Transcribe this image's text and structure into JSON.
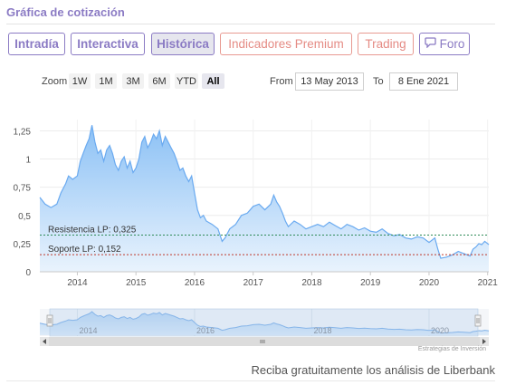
{
  "header": {
    "title": "Gráfica de cotización"
  },
  "tabs": [
    {
      "label": "Intradía"
    },
    {
      "label": "Interactiva"
    },
    {
      "label": "Histórica"
    },
    {
      "label": "Indicadores Premium"
    },
    {
      "label": "Trading"
    },
    {
      "label": "Foro",
      "icon": "chat-bubble-icon"
    }
  ],
  "zoom": {
    "label": "Zoom",
    "buttons": [
      "1W",
      "1M",
      "3M",
      "6M",
      "YTD",
      "All"
    ],
    "selected": "All"
  },
  "range": {
    "from_label": "From",
    "from_value": "13 May 2013",
    "to_label": "To",
    "to_value": "8 Ene 2021"
  },
  "chart_data": {
    "type": "area",
    "x_ticks": [
      "2014",
      "2015",
      "2016",
      "2017",
      "2018",
      "2019",
      "2020",
      "2021"
    ],
    "y_ticks": [
      "0",
      "0,25",
      "0,5",
      "0,75",
      "1",
      "1,25"
    ],
    "ylim": [
      0,
      1.35
    ],
    "xlim": [
      2013.36,
      2021.02
    ],
    "series": [
      {
        "x": [
          2013.36,
          2013.45,
          2013.55,
          2013.65,
          2013.72,
          2013.8,
          2013.85,
          2013.92,
          2014.0,
          2014.05,
          2014.1,
          2014.15,
          2014.2,
          2014.25,
          2014.3,
          2014.35,
          2014.4,
          2014.45,
          2014.5,
          2014.55,
          2014.6,
          2014.65,
          2014.7,
          2014.75,
          2014.8,
          2014.85,
          2014.9,
          2014.95,
          2015.0,
          2015.05,
          2015.1,
          2015.15,
          2015.2,
          2015.25,
          2015.3,
          2015.35,
          2015.4,
          2015.45,
          2015.5,
          2015.55,
          2015.6,
          2015.65,
          2015.7,
          2015.75,
          2015.8,
          2015.85,
          2015.9,
          2015.95,
          2016.0,
          2016.05,
          2016.1,
          2016.15,
          2016.2,
          2016.3,
          2016.4,
          2016.47,
          2016.52,
          2016.6,
          2016.7,
          2016.8,
          2016.9,
          2017.0,
          2017.1,
          2017.2,
          2017.3,
          2017.35,
          2017.4,
          2017.45,
          2017.5,
          2017.55,
          2017.6,
          2017.7,
          2017.8,
          2017.9,
          2018.0,
          2018.1,
          2018.2,
          2018.3,
          2018.4,
          2018.5,
          2018.6,
          2018.7,
          2018.8,
          2018.9,
          2019.0,
          2019.1,
          2019.2,
          2019.3,
          2019.4,
          2019.5,
          2019.6,
          2019.7,
          2019.8,
          2019.9,
          2020.0,
          2020.1,
          2020.15,
          2020.2,
          2020.3,
          2020.4,
          2020.5,
          2020.6,
          2020.7,
          2020.75,
          2020.8,
          2020.85,
          2020.9,
          2020.95,
          2021.0,
          2021.02
        ],
        "y": [
          0.66,
          0.6,
          0.57,
          0.6,
          0.7,
          0.78,
          0.85,
          0.82,
          0.85,
          0.98,
          1.05,
          1.12,
          1.18,
          1.3,
          1.15,
          1.05,
          1.08,
          0.98,
          1.08,
          1.12,
          1.05,
          0.95,
          0.9,
          0.98,
          1.02,
          0.92,
          0.98,
          0.88,
          0.92,
          1.0,
          1.15,
          1.2,
          1.1,
          1.15,
          1.22,
          1.18,
          1.25,
          1.12,
          1.2,
          1.15,
          1.1,
          1.05,
          0.98,
          0.9,
          0.92,
          0.85,
          0.8,
          0.85,
          0.7,
          0.55,
          0.48,
          0.5,
          0.45,
          0.42,
          0.38,
          0.27,
          0.3,
          0.38,
          0.42,
          0.5,
          0.52,
          0.58,
          0.6,
          0.55,
          0.6,
          0.68,
          0.62,
          0.58,
          0.52,
          0.45,
          0.4,
          0.45,
          0.42,
          0.38,
          0.4,
          0.42,
          0.4,
          0.44,
          0.41,
          0.38,
          0.42,
          0.4,
          0.37,
          0.39,
          0.36,
          0.35,
          0.38,
          0.34,
          0.32,
          0.33,
          0.3,
          0.29,
          0.31,
          0.3,
          0.26,
          0.3,
          0.2,
          0.12,
          0.13,
          0.15,
          0.18,
          0.16,
          0.14,
          0.2,
          0.22,
          0.25,
          0.24,
          0.27,
          0.25,
          0.24
        ]
      }
    ],
    "annotations": [
      {
        "label": "Resistencia LP: 0,325",
        "value": 0.325,
        "color": "#2e8b57"
      },
      {
        "label": "Soporte LP: 0,152",
        "value": 0.152,
        "color": "#c0392b"
      }
    ],
    "navigator_ticks": [
      "2014",
      "2016",
      "2018",
      "2020"
    ],
    "grid": true,
    "colors": {
      "line": "#6aaaf0",
      "fill_top": "#8cc1f5",
      "fill_bottom": "#e9f3fd"
    }
  },
  "credits": "Estrategias de Inversión",
  "promo": "Reciba gratuitamente los análisis de Liberbank"
}
